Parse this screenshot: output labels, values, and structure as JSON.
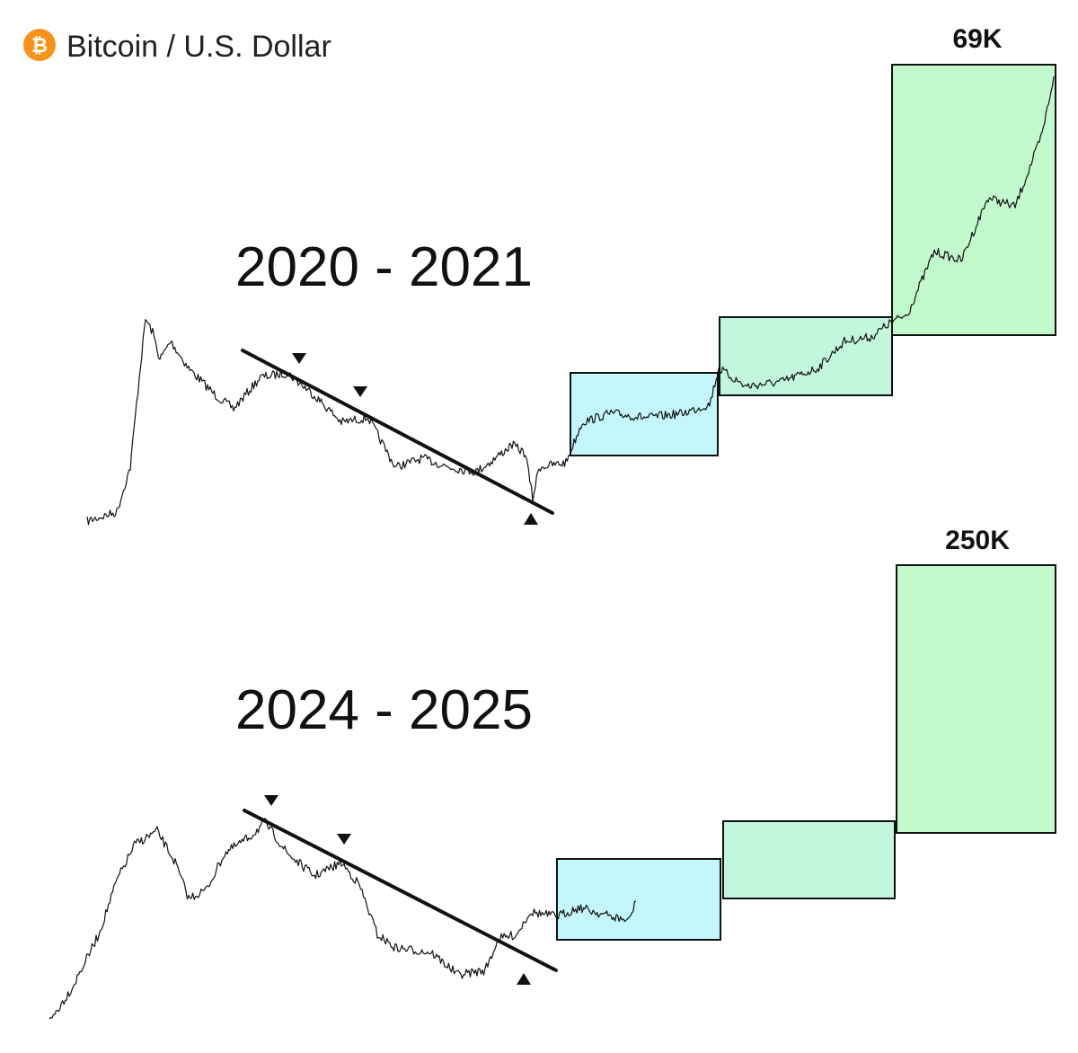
{
  "header": {
    "title": "Bitcoin / U.S. Dollar"
  },
  "panels": [
    {
      "period": "2020 - 2021",
      "target": "69K"
    },
    {
      "period": "2024 - 2025",
      "target": "250K"
    }
  ]
}
